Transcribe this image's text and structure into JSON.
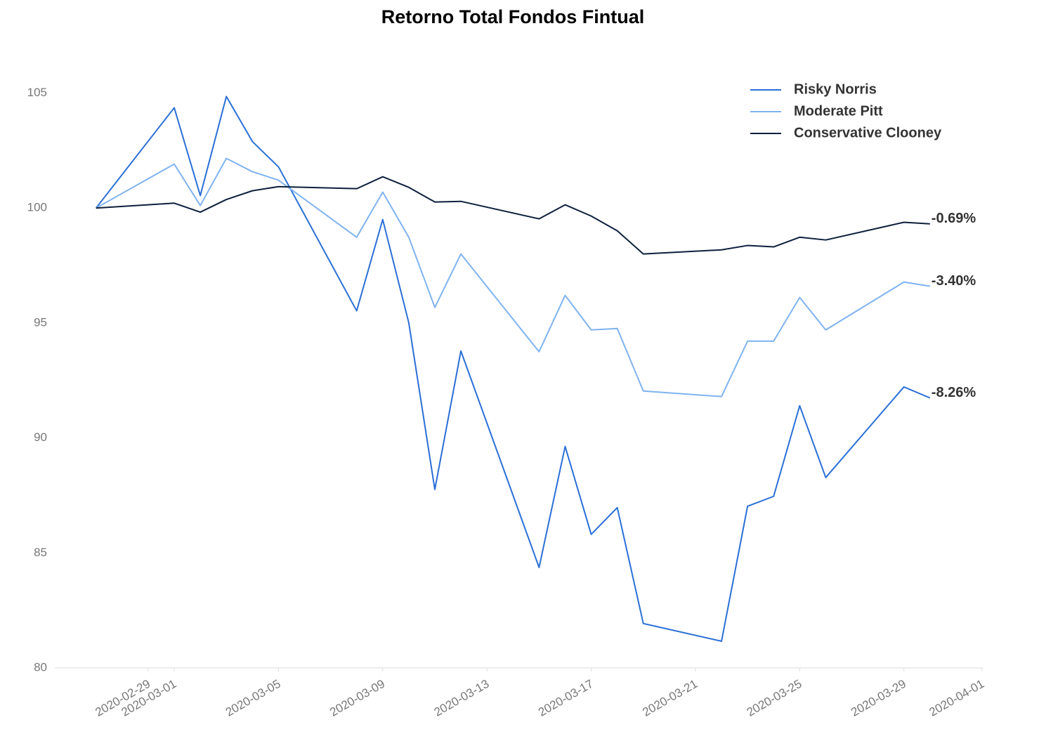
{
  "chart_data": {
    "type": "line",
    "title": "Retorno Total Fondos Fintual",
    "x": [
      "2020-02-27",
      "2020-03-01",
      "2020-03-02",
      "2020-03-03",
      "2020-03-04",
      "2020-03-05",
      "2020-03-08",
      "2020-03-09",
      "2020-03-10",
      "2020-03-11",
      "2020-03-12",
      "2020-03-15",
      "2020-03-16",
      "2020-03-17",
      "2020-03-18",
      "2020-03-19",
      "2020-03-22",
      "2020-03-23",
      "2020-03-24",
      "2020-03-25",
      "2020-03-26",
      "2020-03-29",
      "2020-03-30"
    ],
    "series": [
      {
        "name": "Risky Norris",
        "color": "#2a6fd6",
        "end_label": "-8.26%",
        "values": [
          100.0,
          104.36,
          100.54,
          104.85,
          102.89,
          101.79,
          95.53,
          99.5,
          95.01,
          87.76,
          93.78,
          84.37,
          89.63,
          85.81,
          86.97,
          81.93,
          81.16,
          87.03,
          87.46,
          91.4,
          88.28,
          92.22,
          91.74
        ]
      },
      {
        "name": "Moderate Pitt",
        "color": "#7fb3f0",
        "end_label": "-3.40%",
        "values": [
          100.0,
          101.91,
          100.11,
          102.16,
          101.58,
          101.21,
          98.73,
          100.69,
          98.73,
          95.68,
          98.0,
          93.75,
          96.2,
          94.7,
          94.76,
          92.04,
          91.8,
          94.21,
          94.21,
          96.11,
          94.7,
          96.78,
          96.6
        ]
      },
      {
        "name": "Conservative Clooney",
        "color": "#0d1f3c",
        "end_label": "-0.69%",
        "values": [
          100.0,
          100.21,
          99.82,
          100.37,
          100.75,
          100.93,
          100.84,
          101.36,
          100.9,
          100.26,
          100.29,
          99.53,
          100.14,
          99.65,
          99.01,
          98.0,
          98.18,
          98.37,
          98.31,
          98.73,
          98.61,
          99.38,
          99.31
        ]
      }
    ],
    "xlim": [
      "2020-02-25T10:00Z",
      "2020-04-01"
    ],
    "xticks": [
      "2020-02-29",
      "2020-03-01",
      "2020-03-05",
      "2020-03-09",
      "2020-03-13",
      "2020-03-17",
      "2020-03-21",
      "2020-03-25",
      "2020-03-29",
      "2020-04-01"
    ],
    "ylim": [
      80,
      107
    ],
    "yticks": [
      80,
      85,
      90,
      95,
      100,
      105
    ],
    "grid": false,
    "legend": "top-right"
  }
}
